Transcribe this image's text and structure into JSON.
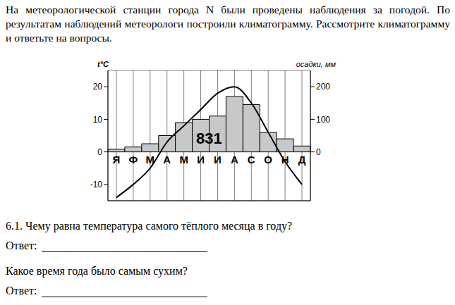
{
  "intro": "На метеорологической станции города N были проведены наблюдения за погодой. По результатам наблюдений метеорологи построили климатограмму. Рассмотрите климатограмму и ответьте на вопросы.",
  "chart_data": {
    "type": "bar",
    "categories": [
      "Я",
      "Ф",
      "М",
      "А",
      "М",
      "И",
      "И",
      "А",
      "С",
      "О",
      "Н",
      "Д"
    ],
    "y_label": "t°C",
    "y2_label": "осадки, мм",
    "annotation": "831",
    "ylim": [
      -15,
      25
    ],
    "yticks": [
      -10,
      0,
      10,
      20
    ],
    "y2lim": [
      -150,
      250
    ],
    "y2ticks": [
      0,
      100,
      200
    ],
    "grid": true,
    "series": [
      {
        "type": "bar",
        "axis": "y2",
        "color": "#c8c8c8",
        "values": [
          8,
          15,
          25,
          50,
          90,
          100,
          110,
          170,
          145,
          60,
          40,
          18
        ]
      },
      {
        "type": "line",
        "color": "#000000",
        "values": [
          -14,
          -10,
          -5,
          3,
          8,
          13,
          18,
          20,
          15,
          6,
          -3,
          -10
        ]
      }
    ]
  },
  "questions": [
    {
      "text": "6.1. Чему равна температура самого тёплого месяца в году?",
      "answer_label": "Ответ:"
    },
    {
      "text": "Какое время года было самым сухим?",
      "answer_label": "Ответ:"
    }
  ]
}
